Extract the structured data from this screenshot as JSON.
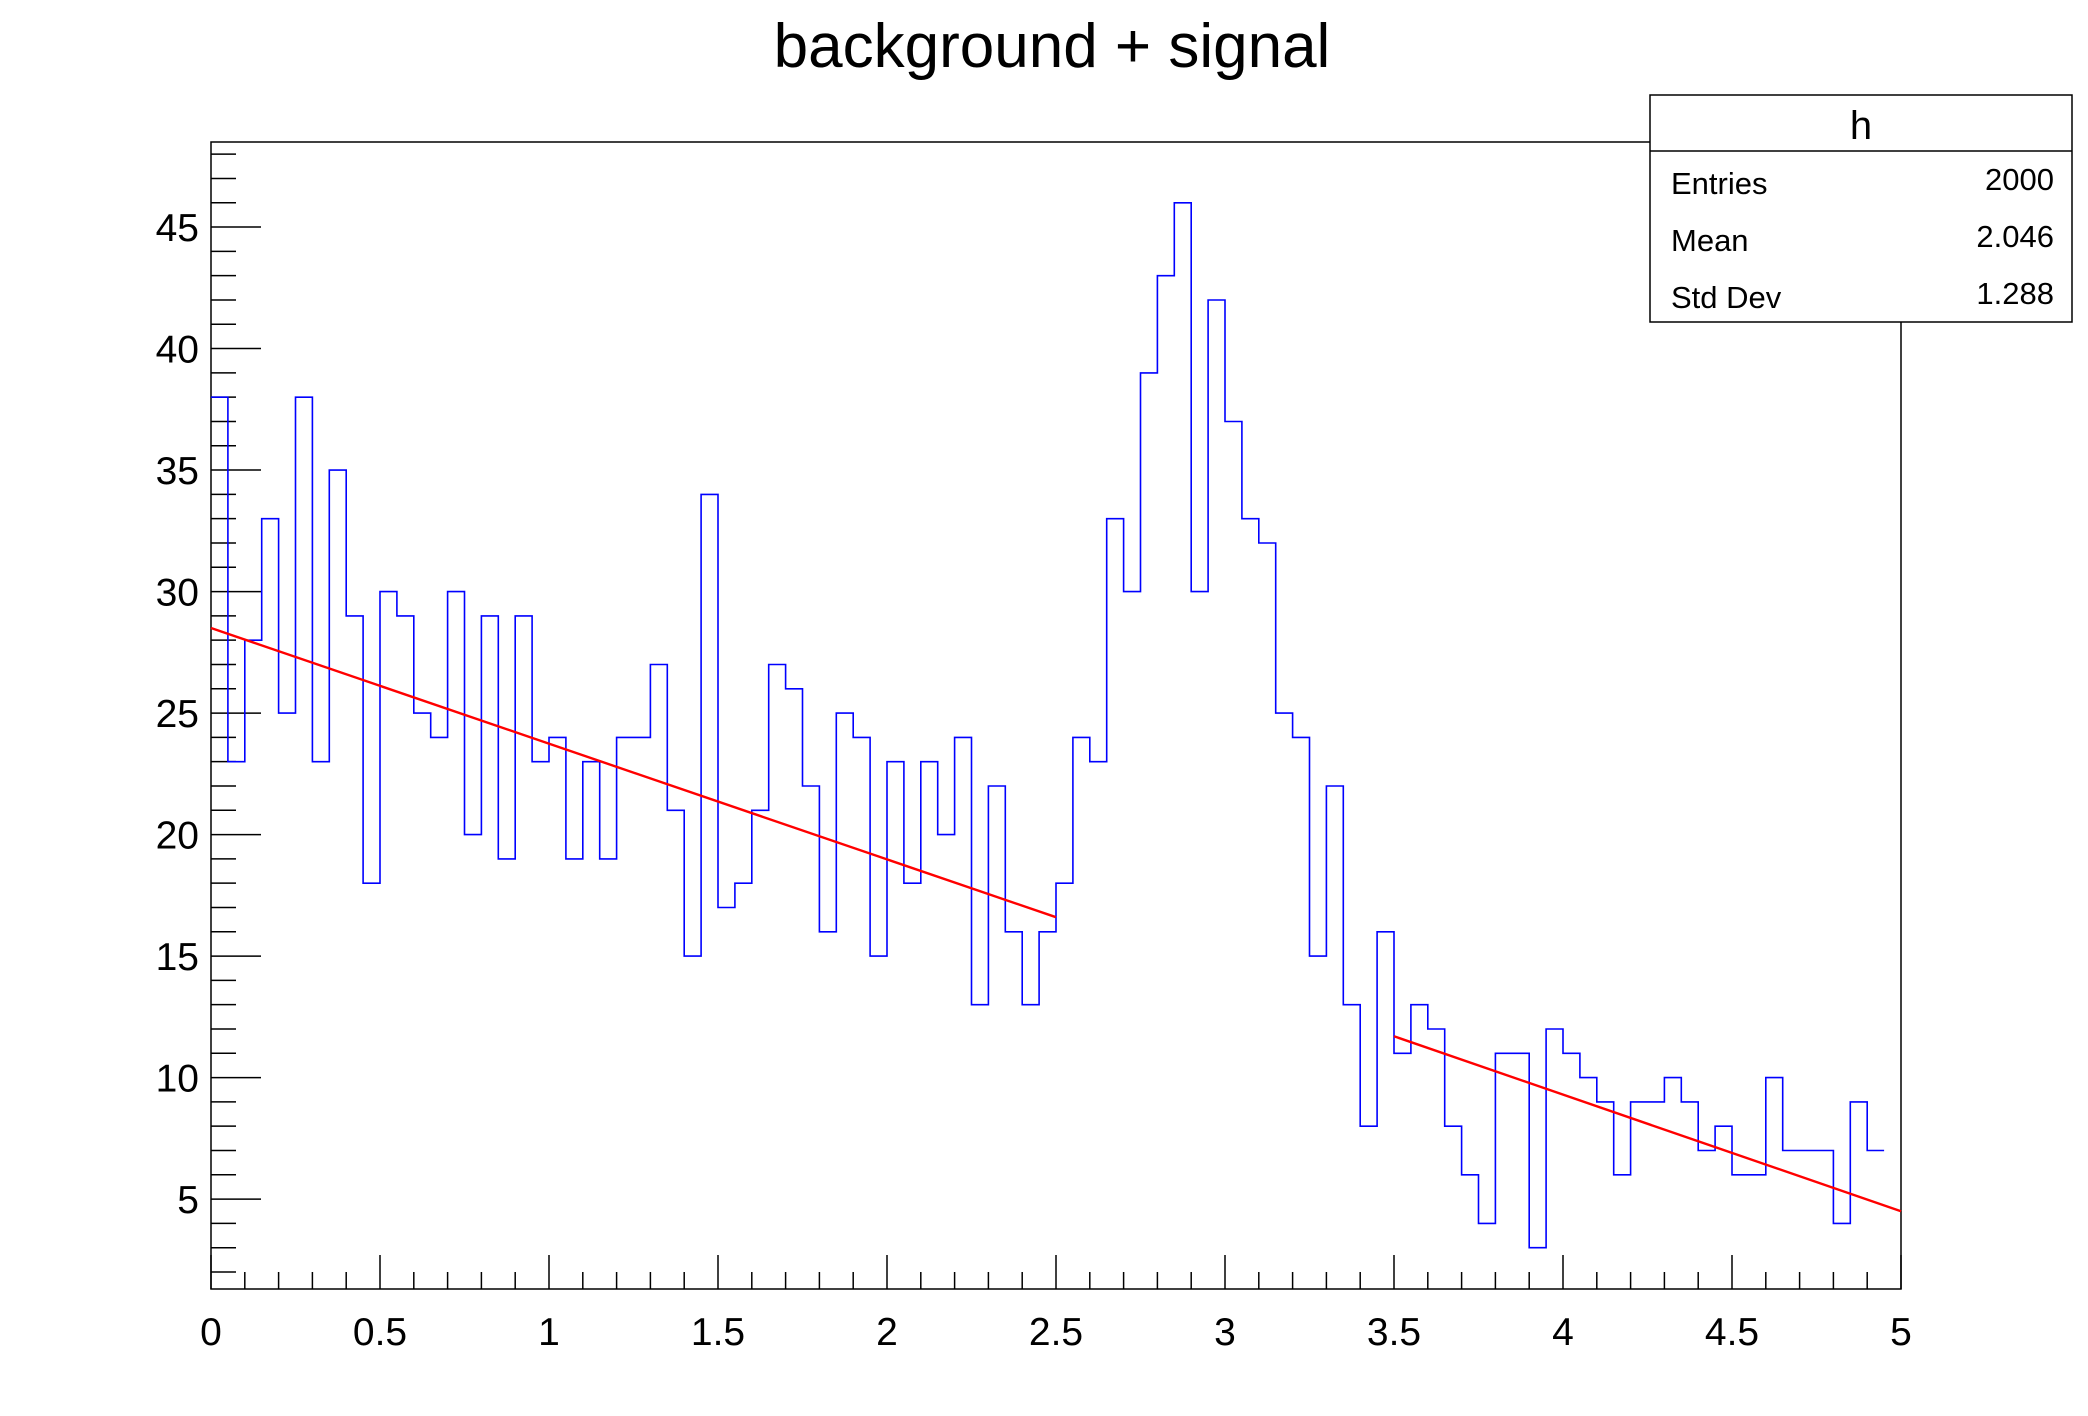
{
  "chart_data": {
    "type": "histogram",
    "title": "background + signal",
    "xlabel": "",
    "ylabel": "",
    "xlim": [
      0,
      5
    ],
    "ylim": [
      1.3,
      48.5
    ],
    "x_ticks": [
      "0",
      "0.5",
      "1",
      "1.5",
      "2",
      "2.5",
      "3",
      "3.5",
      "4",
      "4.5",
      "5"
    ],
    "y_ticks": [
      "5",
      "10",
      "15",
      "20",
      "25",
      "30",
      "35",
      "40",
      "45"
    ],
    "grid": false,
    "bin_width": 0.05,
    "series": [
      {
        "values": [
          38,
          23,
          28,
          33,
          25,
          38,
          23,
          35,
          29,
          18,
          30,
          29,
          25,
          24,
          30,
          20,
          29,
          19,
          29,
          23,
          24,
          19,
          23,
          19,
          24,
          24,
          27,
          21,
          15,
          34,
          17,
          18,
          21,
          27,
          26,
          22,
          16,
          25,
          24,
          15,
          23,
          18,
          23,
          20,
          24,
          13,
          22,
          16,
          13,
          16,
          18,
          24,
          23,
          33,
          30,
          39,
          43,
          46,
          30,
          42,
          37,
          33,
          32,
          25,
          24,
          15,
          22,
          13,
          8,
          16,
          11,
          13,
          12,
          8,
          6,
          4,
          11,
          11,
          3,
          12,
          11,
          10,
          9,
          6,
          9,
          9,
          10,
          9,
          7,
          8,
          6,
          6,
          10,
          7,
          7,
          7,
          4,
          9,
          7
        ],
        "color": "#0000ff"
      }
    ],
    "fits": [
      {
        "x": [
          0,
          2.5
        ],
        "y": [
          28.5,
          16.6
        ],
        "color": "#ff0000"
      },
      {
        "x": [
          3.5,
          5
        ],
        "y": [
          11.7,
          4.5
        ],
        "color": "#ff0000"
      }
    ],
    "stats_box": {
      "title": "h",
      "rows": [
        {
          "label": "Entries",
          "value": "2000"
        },
        {
          "label": "Mean",
          "value": "2.046"
        },
        {
          "label": "Std Dev",
          "value": "1.288"
        }
      ]
    }
  }
}
